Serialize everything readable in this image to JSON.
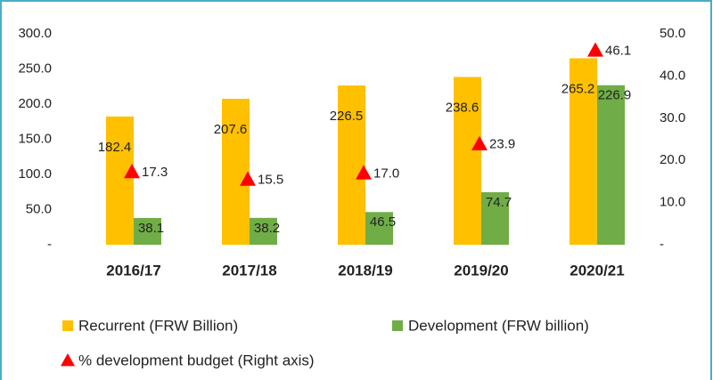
{
  "chart_data": {
    "type": "bar",
    "categories": [
      "2016/17",
      "2017/18",
      "2018/19",
      "2019/20",
      "2020/21"
    ],
    "series": [
      {
        "name": "Recurrent (FRW Billion)",
        "color": "#FFC000",
        "values": [
          182.4,
          207.6,
          226.5,
          238.6,
          265.2
        ]
      },
      {
        "name": "Development (FRW billion)",
        "color": "#70AD47",
        "values": [
          38.1,
          38.2,
          46.5,
          74.7,
          226.9
        ]
      },
      {
        "name": "% development budget (Right axis)",
        "color": "#FF0000",
        "axis": "y2",
        "marker": "triangle",
        "values": [
          17.3,
          15.5,
          17.0,
          23.9,
          46.1
        ],
        "value_labels": [
          "17.3",
          "15.5",
          "17.0",
          "23.9",
          "46.1"
        ]
      }
    ],
    "ylim": [
      0,
      300
    ],
    "yticks": [
      {
        "value": 0,
        "label": "-"
      },
      {
        "value": 50,
        "label": "50.0"
      },
      {
        "value": 100,
        "label": "100.0"
      },
      {
        "value": 150,
        "label": "150.0"
      },
      {
        "value": 200,
        "label": "200.0"
      },
      {
        "value": 250,
        "label": "250.0"
      },
      {
        "value": 300,
        "label": "300.0"
      }
    ],
    "y2lim": [
      0,
      50
    ],
    "y2ticks": [
      {
        "value": 0,
        "label": "-"
      },
      {
        "value": 10,
        "label": "10.0"
      },
      {
        "value": 20,
        "label": "20.0"
      },
      {
        "value": 30,
        "label": "30.0"
      },
      {
        "value": 40,
        "label": "40.0"
      },
      {
        "value": 50,
        "label": "50.0"
      }
    ],
    "grid": false,
    "legend": "bottom"
  }
}
